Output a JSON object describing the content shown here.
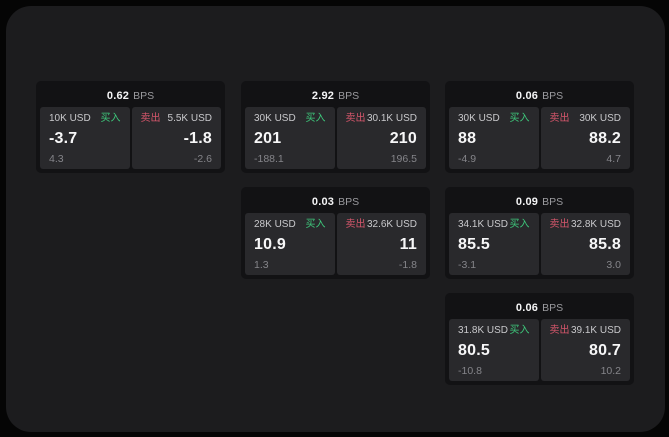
{
  "labels": {
    "bps_unit": "BPS",
    "buy": "买入",
    "sell": "卖出"
  },
  "colors": {
    "buy_green": "#3ec97c",
    "sell_red": "#d5566b",
    "window_bg": "#1c1c1e",
    "card_bg": "#121214",
    "panel_bg": "#29292c"
  },
  "cards": [
    {
      "row": 1,
      "col": 1,
      "bps": "0.62",
      "buy": {
        "amount": "10K USD",
        "value": "-3.7",
        "delta": "4.3"
      },
      "sell": {
        "amount": "5.5K USD",
        "value": "-1.8",
        "delta": "-2.6"
      }
    },
    {
      "row": 1,
      "col": 2,
      "bps": "2.92",
      "buy": {
        "amount": "30K USD",
        "value": "201",
        "delta": "-188.1"
      },
      "sell": {
        "amount": "30.1K USD",
        "value": "210",
        "delta": "196.5"
      }
    },
    {
      "row": 1,
      "col": 3,
      "bps": "0.06",
      "buy": {
        "amount": "30K USD",
        "value": "88",
        "delta": "-4.9"
      },
      "sell": {
        "amount": "30K USD",
        "value": "88.2",
        "delta": "4.7"
      }
    },
    {
      "row": 2,
      "col": 2,
      "bps": "0.03",
      "buy": {
        "amount": "28K USD",
        "value": "10.9",
        "delta": "1.3"
      },
      "sell": {
        "amount": "32.6K USD",
        "value": "11",
        "delta": "-1.8"
      }
    },
    {
      "row": 2,
      "col": 3,
      "bps": "0.09",
      "buy": {
        "amount": "34.1K USD",
        "value": "85.5",
        "delta": "-3.1"
      },
      "sell": {
        "amount": "32.8K USD",
        "value": "85.8",
        "delta": "3.0"
      }
    },
    {
      "row": 3,
      "col": 3,
      "bps": "0.06",
      "buy": {
        "amount": "31.8K USD",
        "value": "80.5",
        "delta": "-10.8"
      },
      "sell": {
        "amount": "39.1K USD",
        "value": "80.7",
        "delta": "10.2"
      }
    }
  ]
}
